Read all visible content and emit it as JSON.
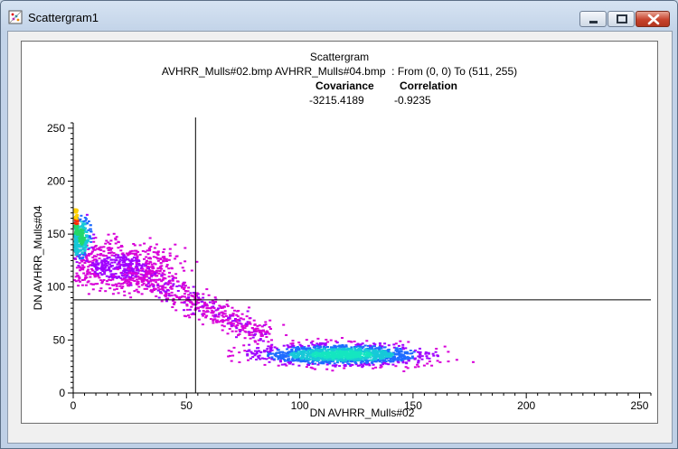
{
  "window": {
    "title": "Scattergram1",
    "icons": [
      "scattergram-app-icon",
      "minimize-icon",
      "maximize-icon",
      "close-icon"
    ]
  },
  "header": {
    "title": "Scattergram",
    "subtitle": "AVHRR_Mulls#02.bmp AVHRR_Mulls#04.bmp  : From (0, 0) To (511, 255)",
    "covariance_label": "Covariance",
    "correlation_label": "Correlation",
    "covariance_value": "-3215.4189",
    "correlation_value": "-0.9235"
  },
  "chart_data": {
    "type": "scatter",
    "title": "Scattergram",
    "xlabel": "DN AVHRR_Mulls#02",
    "ylabel": "DN AVHRR_Mulls#04",
    "xlim": [
      0,
      255
    ],
    "ylim": [
      0,
      255
    ],
    "xticks": [
      0,
      50,
      100,
      150,
      200,
      250
    ],
    "yticks": [
      0,
      50,
      100,
      150,
      200,
      250
    ],
    "grid": false,
    "crosshair": {
      "x": 54,
      "y": 88
    },
    "density_colors": [
      "#d800d8",
      "#a000ff",
      "#3b2bff",
      "#1f6cff",
      "#17c9d8",
      "#15e6c0",
      "#23d86a",
      "#ffd000",
      "#ff2a00"
    ],
    "clusters": [
      {
        "name": "",
        "cx": 118,
        "cy": 37,
        "sx": 26,
        "sy": 7,
        "density": "high"
      },
      {
        "name": "",
        "cx": 20,
        "cy": 120,
        "sx": 18,
        "sy": 16,
        "density": "medium"
      },
      {
        "name": "",
        "cx": 3,
        "cy": 148,
        "sx": 3,
        "sy": 14,
        "density": "very-high"
      }
    ]
  }
}
